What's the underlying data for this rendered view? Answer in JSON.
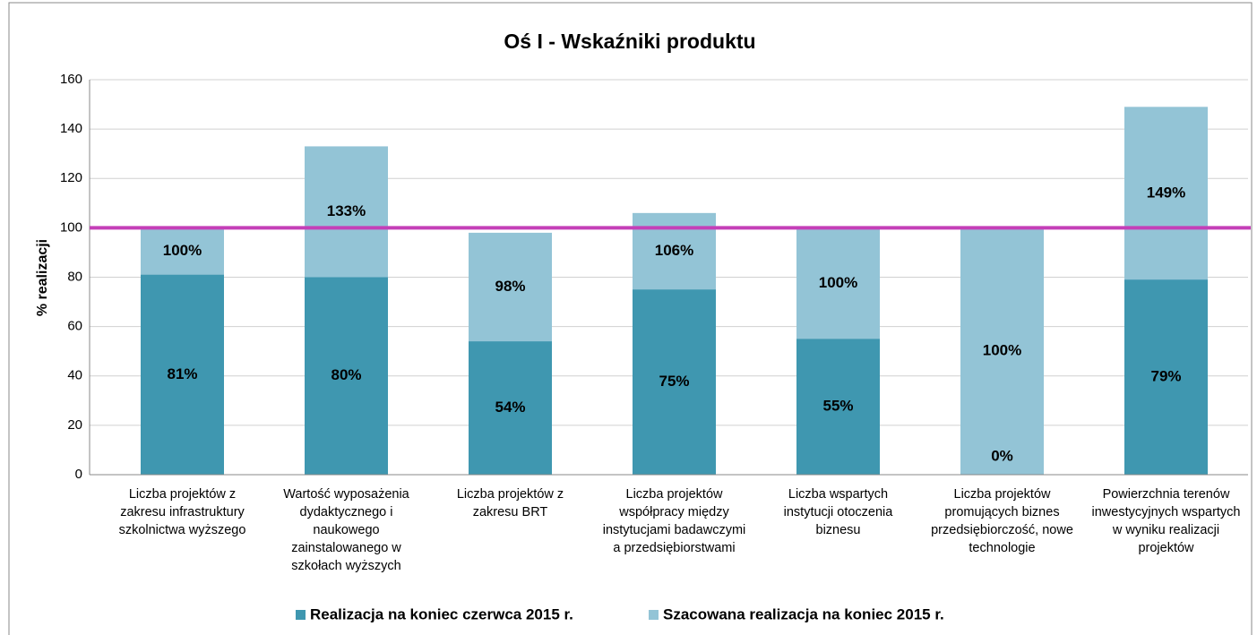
{
  "chart_data": {
    "type": "bar",
    "title": "Oś I - Wskaźniki produktu",
    "y_label": "% realizacji",
    "categories": [
      "Liczba projektów z zakresu infrastruktury szkolnictwa wyższego",
      "Wartość wyposażenia dydaktycznego i naukowego zainstalowanego w szkołach wyższych",
      "Liczba projektów z zakresu BRT",
      "Liczba projektów współpracy między instytucjami badawczymi a przedsiębiorstwami",
      "Liczba wspartych instytucji otoczenia biznesu",
      "Liczba projektów promujących biznes przedsiębiorczość, nowe technologie",
      "Powierzchnia terenów inwestycyjnych wspartych w wyniku realizacji projektów"
    ],
    "series": [
      {
        "name": "Realizacja na koniec czerwca 2015 r.",
        "color": "#3f97b0",
        "values": [
          81,
          80,
          54,
          75,
          55,
          0,
          79
        ],
        "value_labels": [
          "81%",
          "80%",
          "54%",
          "75%",
          "55%",
          "0%",
          "79%"
        ]
      },
      {
        "name": "Szacowana realizacja na koniec 2015 r.",
        "color": "#93c4d6",
        "values": [
          100,
          133,
          98,
          106,
          100,
          100,
          149
        ],
        "value_labels": [
          "100%",
          "133%",
          "98%",
          "106%",
          "100%",
          "100%",
          "149%"
        ]
      }
    ],
    "overlap": true,
    "reference_line": {
      "value": 100,
      "color": "#c43fb8"
    },
    "ylim": [
      0,
      160
    ],
    "yticks": [
      0,
      20,
      40,
      60,
      80,
      100,
      120,
      140,
      160
    ],
    "grid": true,
    "legend": "bottom"
  }
}
